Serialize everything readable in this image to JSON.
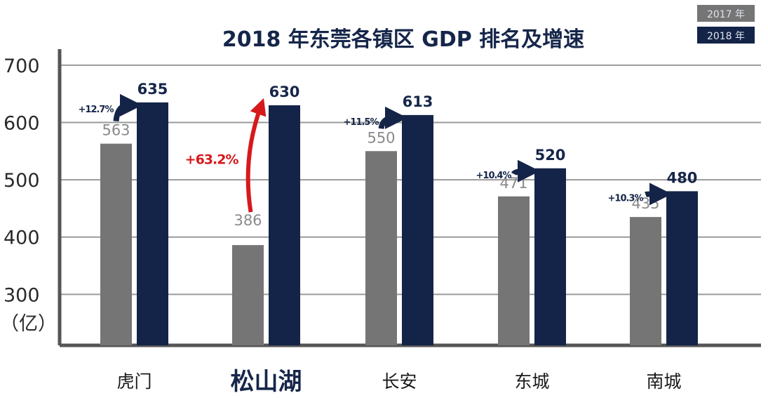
{
  "chart_data": {
    "type": "bar",
    "title": "2018 年东莞各镇区 GDP 排名及增速",
    "ylabel": "（亿）",
    "ylim": [
      211,
      728
    ],
    "yticks": [
      300,
      400,
      500,
      600,
      700
    ],
    "grid": true,
    "legend_position": "top-right",
    "categories": [
      "虎门",
      "松山湖",
      "长安",
      "东城",
      "南城"
    ],
    "highlight_category": "松山湖",
    "series": [
      {
        "name": "2017 年",
        "color": "#757575",
        "values": [
          563,
          386,
          550,
          471,
          435
        ]
      },
      {
        "name": "2018 年",
        "color": "#142448",
        "values": [
          635,
          630,
          613,
          520,
          480
        ]
      }
    ],
    "growth_labels": [
      "+12.7%",
      "+63.2%",
      "+11.5%",
      "+10.4%",
      "+10.3%"
    ],
    "colors": {
      "growth_arrow": "#142448",
      "highlight_arrow": "#d7191c",
      "grid": "#9a9a9a",
      "axis": "#555555"
    }
  }
}
